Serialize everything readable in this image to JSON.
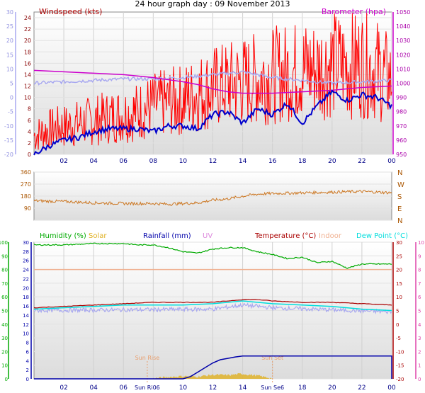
{
  "title": "24 hour graph day : 09 November 2013",
  "chart_data": [
    {
      "type": "line",
      "panel": "wind-barometer",
      "labels": {
        "windspeed": "Windspeed (kts)",
        "barometer": "Barometer (hpa)"
      },
      "x_ticks": [
        "02",
        "04",
        "06",
        "08",
        "10",
        "12",
        "14",
        "16",
        "18",
        "20",
        "22",
        "00"
      ],
      "x_range_hours": [
        0,
        24
      ],
      "left_axis_red": {
        "ylim": [
          0,
          25
        ],
        "ticks": [
          "0",
          "2",
          "4",
          "6",
          "8",
          "10",
          "12",
          "14",
          "16",
          "18",
          "20",
          "22",
          "24"
        ]
      },
      "left_axis_blue": {
        "ylim": [
          -20,
          30
        ],
        "ticks": [
          "-20",
          "-15",
          "-10",
          "-5",
          "0",
          "5",
          "10",
          "15",
          "20",
          "25",
          "30"
        ]
      },
      "right_axis": {
        "ylim": [
          950,
          1050
        ],
        "ticks": [
          "950",
          "960",
          "970",
          "980",
          "990",
          "1000",
          "1010",
          "1020",
          "1030",
          "1040",
          "1050"
        ]
      },
      "colors": {
        "windspeed": "#ff0000",
        "gust_avg": "#0000cc",
        "barometer": "#cc00cc",
        "wind_lavender": "#a8a8f0"
      },
      "series": [
        {
          "name": "Windspeed (kts)",
          "axis": "left_red",
          "color": "#ff0000",
          "x": [
            0,
            1,
            2,
            3,
            4,
            5,
            6,
            7,
            8,
            9,
            10,
            11,
            12,
            13,
            14,
            15,
            16,
            17,
            18,
            19,
            20,
            21,
            22,
            23,
            24
          ],
          "y": [
            3,
            4,
            4.5,
            5,
            5.5,
            6,
            6.5,
            7,
            8,
            8.5,
            9,
            10,
            11,
            11.5,
            12,
            12.5,
            13,
            13.5,
            14,
            14,
            15,
            14.5,
            15,
            14,
            12
          ]
        },
        {
          "axis": "left_blue",
          "color": "#0000cc",
          "x": [
            0,
            1,
            2,
            3,
            4,
            5,
            6,
            7,
            8,
            9,
            10,
            11,
            12,
            13,
            14,
            15,
            16,
            17,
            18,
            19,
            20,
            21,
            22,
            23,
            24
          ],
          "y": [
            -20,
            -17,
            -15,
            -14,
            -12,
            -11,
            -11,
            -11,
            -12,
            -10,
            -10,
            -11,
            -6,
            -5,
            -9,
            -4,
            -6,
            -2,
            -9,
            -3,
            2,
            -1,
            1,
            0,
            -3
          ]
        },
        {
          "name": "Barometer (hpa)",
          "axis": "right",
          "color": "#cc00cc",
          "x": [
            0,
            2,
            4,
            6,
            8,
            10,
            11,
            12,
            13,
            14,
            16,
            18,
            20,
            22,
            24
          ],
          "y": [
            1009,
            1008,
            1007,
            1006,
            1004,
            1001,
            999,
            996,
            994,
            993,
            993,
            994,
            995,
            997,
            998
          ]
        },
        {
          "axis": "left_blue",
          "color": "#a8a8f0",
          "x": [
            0,
            2,
            4,
            6,
            8,
            10,
            12,
            14,
            16,
            18,
            20,
            22,
            24
          ],
          "y": [
            5,
            5.5,
            6,
            6.5,
            6.5,
            7,
            8,
            9,
            7,
            6,
            5,
            5.5,
            6
          ]
        }
      ]
    },
    {
      "type": "line",
      "panel": "wind-direction",
      "y_ticks": [
        "360",
        "270",
        "180",
        "90",
        "0"
      ],
      "compass": [
        "N",
        "W",
        "S",
        "E",
        "N"
      ],
      "ylim": [
        0,
        360
      ],
      "color": "#cc7722",
      "series": [
        {
          "x": [
            0,
            2,
            4,
            6,
            8,
            9,
            10,
            11,
            12,
            13,
            14,
            15,
            16,
            18,
            20,
            22,
            24
          ],
          "y": [
            145,
            140,
            130,
            125,
            125,
            120,
            125,
            130,
            150,
            160,
            180,
            195,
            200,
            205,
            210,
            215,
            205
          ]
        }
      ]
    },
    {
      "type": "line",
      "panel": "humidity-temperature",
      "labels": {
        "humidity": "Humidity (%)",
        "solar": "Solar",
        "rainfall": "Rainfall (mm)",
        "uv": "UV",
        "temperature": "Temperature (°C)",
        "indoor": "Indoor",
        "dewpoint": "Dew Point (°C)"
      },
      "colors": {
        "humidity": "#00aa00",
        "solar": "#e0b020",
        "rainfall": "#0000aa",
        "uv": "#dd88dd",
        "temperature": "#aa0000",
        "indoor": "#f0b090",
        "dewpoint": "#00dddd"
      },
      "x_ticks": [
        "02",
        "04",
        "06",
        "08",
        "10",
        "12",
        "14",
        "16",
        "18",
        "20",
        "22",
        "00"
      ],
      "sun_labels": [
        "Sun Rise",
        "Sun Set"
      ],
      "sun_tick_labels": [
        "Sun Ri06",
        "Sun Se6"
      ],
      "axis_humidity_ticks": [
        "0",
        "10",
        "20",
        "30",
        "40",
        "50",
        "60",
        "70",
        "80",
        "90",
        "100"
      ],
      "axis_rain_ticks": [
        "0",
        "2",
        "4",
        "6",
        "8",
        "10",
        "12",
        "14",
        "16",
        "18",
        "20",
        "22",
        "24",
        "26",
        "28",
        "30"
      ],
      "axis_temp_ticks": [
        "-20",
        "-15",
        "-10",
        "-5",
        "0",
        "5",
        "10",
        "15",
        "20",
        "25",
        "30"
      ],
      "axis_right_ticks": [
        "-20",
        "-15",
        "-10",
        "-5",
        "0",
        "5",
        "10",
        "15",
        "20",
        "25",
        "30"
      ],
      "axis_uv_ticks": [
        "0",
        "1",
        "2",
        "3",
        "4",
        "5",
        "6",
        "7",
        "8",
        "9",
        "10"
      ],
      "series": [
        {
          "name": "Humidity (%)",
          "axis": "humidity",
          "color": "#00aa00",
          "x": [
            0,
            2,
            4,
            6,
            7,
            8,
            9,
            10,
            11,
            12,
            13,
            14,
            15,
            16,
            17,
            18,
            19,
            20,
            21,
            22,
            23,
            24
          ],
          "y": [
            98,
            98,
            99,
            99,
            98,
            98,
            96,
            93,
            92,
            95,
            96,
            96,
            93,
            91,
            88,
            89,
            85,
            86,
            81,
            84,
            84,
            84
          ]
        },
        {
          "name": "Temperature (°C)",
          "axis": "temp",
          "color": "#aa0000",
          "x": [
            0,
            2,
            4,
            6,
            8,
            10,
            12,
            13,
            14,
            15,
            16,
            18,
            20,
            22,
            24
          ],
          "y": [
            6,
            6.5,
            7,
            7.5,
            8,
            8,
            8,
            8.5,
            9,
            9,
            8.5,
            8,
            8,
            7.5,
            7
          ]
        },
        {
          "name": "Dew Point (°C)",
          "axis": "temp",
          "color": "#00dddd",
          "x": [
            0,
            2,
            4,
            6,
            8,
            10,
            12,
            14,
            16,
            18,
            20,
            22,
            24
          ],
          "y": [
            5.5,
            6,
            6.5,
            7,
            7,
            7,
            7.5,
            8.5,
            7.5,
            7,
            6.5,
            5.5,
            5
          ]
        },
        {
          "name": "Indoor",
          "axis": "temp",
          "color": "#f0b090",
          "x": [
            0,
            24
          ],
          "y": [
            20,
            20
          ]
        },
        {
          "name": "Rainfall (mm)",
          "axis": "rain",
          "color": "#0000aa",
          "x": [
            0,
            10,
            10.5,
            11,
            11.5,
            12,
            12.5,
            13,
            13.5,
            14,
            15,
            24
          ],
          "y": [
            0,
            0,
            0.5,
            1.5,
            2.5,
            3.5,
            4.2,
            4.5,
            4.8,
            5,
            5,
            5
          ]
        },
        {
          "name": "Solar",
          "axis": "rain",
          "color": "#e0b020",
          "fill": true,
          "x": [
            8,
            9,
            10,
            11,
            12,
            13,
            14,
            15,
            16
          ],
          "y": [
            0,
            0.3,
            0.5,
            0.4,
            0.8,
            0.7,
            1.0,
            0.6,
            0
          ]
        }
      ]
    }
  ]
}
